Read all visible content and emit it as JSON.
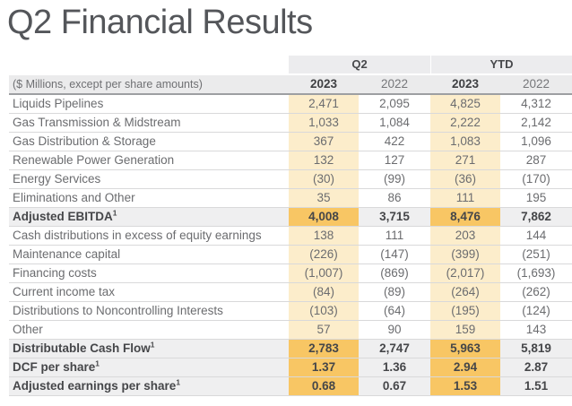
{
  "page": {
    "title": "Q2 Financial Results"
  },
  "table": {
    "unit_note": "($ Millions, except per share amounts)",
    "col_groups": [
      {
        "label": "Q2"
      },
      {
        "label": "YTD"
      }
    ],
    "year_headers": [
      "2023",
      "2022",
      "2023",
      "2022"
    ],
    "rows": [
      {
        "label": "Liquids Pipelines",
        "sup": "",
        "bold": false,
        "values": [
          "2,471",
          "2,095",
          "4,825",
          "4,312"
        ]
      },
      {
        "label": "Gas Transmission & Midstream",
        "sup": "",
        "bold": false,
        "values": [
          "1,033",
          "1,084",
          "2,222",
          "2,142"
        ]
      },
      {
        "label": "Gas Distribution & Storage",
        "sup": "",
        "bold": false,
        "values": [
          "367",
          "422",
          "1,083",
          "1,096"
        ]
      },
      {
        "label": "Renewable Power Generation",
        "sup": "",
        "bold": false,
        "values": [
          "132",
          "127",
          "271",
          "287"
        ]
      },
      {
        "label": "Energy Services",
        "sup": "",
        "bold": false,
        "values": [
          "(30)",
          "(99)",
          "(36)",
          "(170)"
        ]
      },
      {
        "label": "Eliminations and Other",
        "sup": "",
        "bold": false,
        "values": [
          "35",
          "86",
          "111",
          "195"
        ]
      },
      {
        "label": "Adjusted EBITDA",
        "sup": "1",
        "bold": true,
        "values": [
          "4,008",
          "3,715",
          "8,476",
          "7,862"
        ]
      },
      {
        "label": "Cash distributions in excess of equity earnings",
        "sup": "",
        "bold": false,
        "values": [
          "138",
          "111",
          "203",
          "144"
        ]
      },
      {
        "label": "Maintenance capital",
        "sup": "",
        "bold": false,
        "values": [
          "(226)",
          "(147)",
          "(399)",
          "(251)"
        ]
      },
      {
        "label": "Financing costs",
        "sup": "",
        "bold": false,
        "values": [
          "(1,007)",
          "(869)",
          "(2,017)",
          "(1,693)"
        ]
      },
      {
        "label": "Current income tax",
        "sup": "",
        "bold": false,
        "values": [
          "(84)",
          "(89)",
          "(264)",
          "(262)"
        ]
      },
      {
        "label": "Distributions to Noncontrolling Interests",
        "sup": "",
        "bold": false,
        "values": [
          "(103)",
          "(64)",
          "(195)",
          "(124)"
        ]
      },
      {
        "label": "Other",
        "sup": "",
        "bold": false,
        "values": [
          "57",
          "90",
          "159",
          "143"
        ]
      },
      {
        "label": "Distributable Cash Flow",
        "sup": "1",
        "bold": true,
        "values": [
          "2,783",
          "2,747",
          "5,963",
          "5,819"
        ]
      },
      {
        "label": "DCF per share",
        "sup": "1",
        "bold": true,
        "values": [
          "1.37",
          "1.36",
          "2.94",
          "2.87"
        ]
      },
      {
        "label": "Adjusted earnings per share",
        "sup": "1",
        "bold": true,
        "values": [
          "0.68",
          "0.67",
          "1.53",
          "1.51"
        ]
      }
    ]
  },
  "colors": {
    "highlight_2023": "#FCEDCB",
    "highlight_2023_total": "#F8C664",
    "total_row_gray": "#EFEFF0",
    "header_band_gray": "#ECECEE",
    "header_border_gray": "#9D9FA2",
    "title_gray": "#54565A"
  }
}
